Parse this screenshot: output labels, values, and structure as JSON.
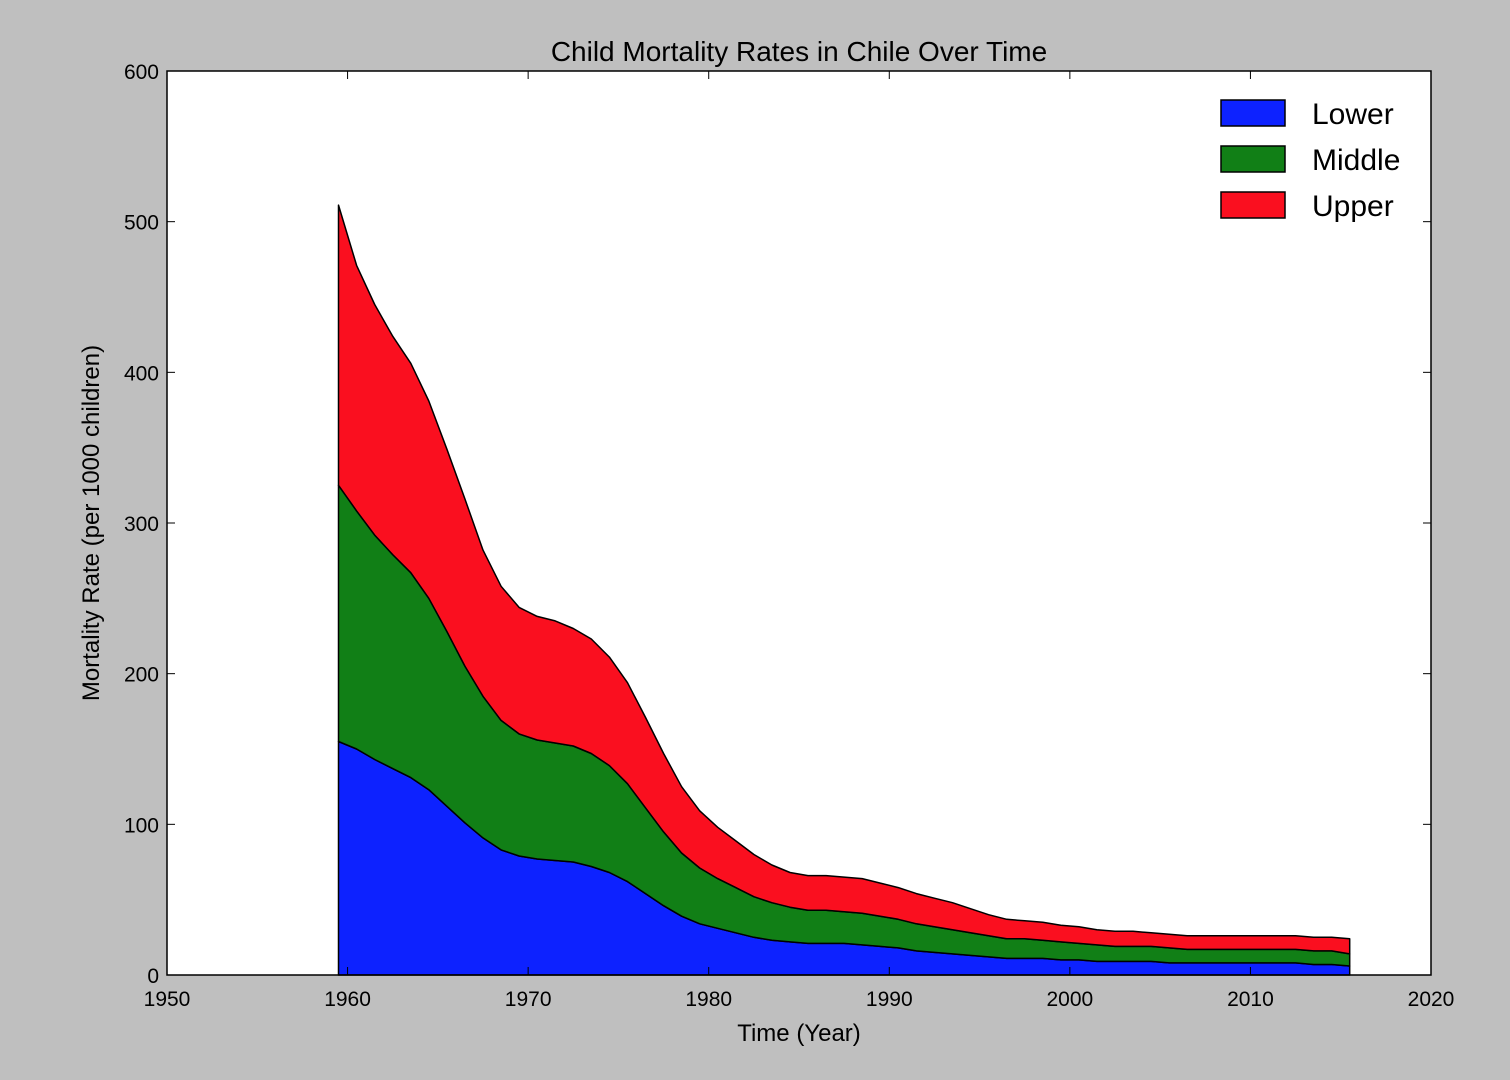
{
  "chart_data": {
    "type": "area",
    "stacked": true,
    "title": "Child Mortality Rates in Chile Over Time",
    "xlabel": "Time (Year)",
    "ylabel": "Mortality Rate (per 1000 children)",
    "xlim": [
      1950,
      2020
    ],
    "ylim": [
      0,
      600
    ],
    "xticks": [
      "1950",
      "1960",
      "1970",
      "1980",
      "1990",
      "2000",
      "2010",
      "2020"
    ],
    "yticks": [
      "0",
      "100",
      "200",
      "300",
      "400",
      "500",
      "600"
    ],
    "grid": false,
    "legend_position": "top-right",
    "x": [
      1959.5,
      1960.5,
      1961.5,
      1962.5,
      1963.5,
      1964.5,
      1965.5,
      1966.5,
      1967.5,
      1968.5,
      1969.5,
      1970.5,
      1971.5,
      1972.5,
      1973.5,
      1974.5,
      1975.5,
      1976.5,
      1977.5,
      1978.5,
      1979.5,
      1980.5,
      1981.5,
      1982.5,
      1983.5,
      1984.5,
      1985.5,
      1986.5,
      1987.5,
      1988.5,
      1989.5,
      1990.5,
      1991.5,
      1992.5,
      1993.5,
      1994.5,
      1995.5,
      1996.5,
      1997.5,
      1998.5,
      1999.5,
      2000.5,
      2001.5,
      2002.5,
      2003.5,
      2004.5,
      2005.5,
      2006.5,
      2007.5,
      2008.5,
      2009.5,
      2010.5,
      2011.5,
      2012.5,
      2013.5,
      2014.5,
      2015.5
    ],
    "series": [
      {
        "name": "Lower",
        "color": "#0d22ff",
        "values": [
          155,
          150,
          143,
          137,
          131,
          123,
          112,
          101,
          91,
          83,
          79,
          77,
          76,
          75,
          72,
          68,
          62,
          54,
          46,
          39,
          34,
          31,
          28,
          25,
          23,
          22,
          21,
          21,
          21,
          20,
          19,
          18,
          16,
          15,
          14,
          13,
          12,
          11,
          11,
          11,
          10,
          10,
          9,
          9,
          9,
          9,
          8,
          8,
          8,
          8,
          8,
          8,
          8,
          8,
          7,
          7,
          6
        ]
      },
      {
        "name": "Middle",
        "color": "#117f16",
        "values": [
          170,
          158,
          149,
          142,
          136,
          127,
          116,
          104,
          94,
          86,
          81,
          79,
          78,
          77,
          75,
          71,
          65,
          57,
          49,
          42,
          37,
          33,
          30,
          27,
          25,
          23,
          22,
          22,
          21,
          21,
          20,
          19,
          18,
          17,
          16,
          15,
          14,
          13,
          13,
          12,
          12,
          11,
          11,
          10,
          10,
          10,
          10,
          9,
          9,
          9,
          9,
          9,
          9,
          9,
          9,
          9,
          8
        ]
      },
      {
        "name": "Upper",
        "color": "#fa0f1f",
        "values": [
          186,
          163,
          153,
          145,
          139,
          131,
          121,
          111,
          97,
          89,
          84,
          82,
          81,
          78,
          76,
          72,
          67,
          60,
          52,
          44,
          38,
          34,
          31,
          28,
          25,
          23,
          23,
          23,
          23,
          23,
          22,
          21,
          20,
          19,
          18,
          16,
          14,
          13,
          12,
          12,
          11,
          11,
          10,
          10,
          10,
          9,
          9,
          9,
          9,
          9,
          9,
          9,
          9,
          9,
          9,
          9,
          10
        ]
      }
    ]
  }
}
